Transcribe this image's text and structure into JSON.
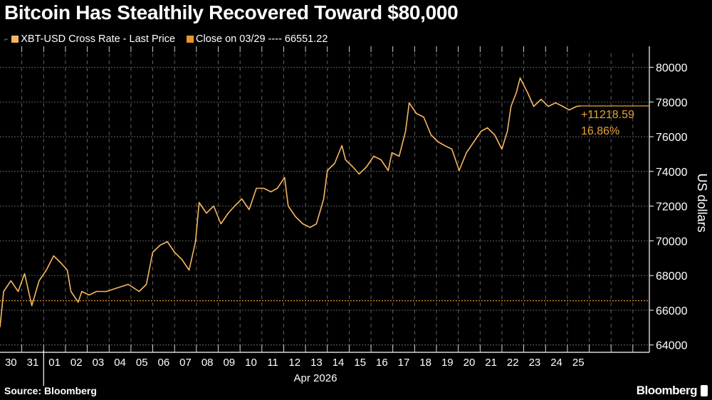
{
  "title": "Bitcoin Has Stealthily Recovered Toward $80,000",
  "legend": [
    {
      "label": "XBT-USD Cross Rate - Last Price",
      "color": "#f5b661"
    },
    {
      "label": "Close on 03/29 ---- 66551.22",
      "color": "#e8962e"
    }
  ],
  "source": "Source: Bloomberg",
  "logo": "Bloomberg",
  "chart_data": {
    "type": "line",
    "title": "Bitcoin Has Stealthily Recovered Toward $80,000",
    "ylabel": "US dollars",
    "xlabel": "Apr 2026",
    "ylim": [
      63700,
      80800
    ],
    "yticks": [
      64000,
      66000,
      68000,
      70000,
      72000,
      74000,
      76000,
      78000,
      80000
    ],
    "xtick_labels": [
      "30",
      "31",
      "01",
      "02",
      "03",
      "04",
      "05",
      "06",
      "07",
      "08",
      "09",
      "10",
      "11",
      "12",
      "13",
      "14",
      "15",
      "16",
      "17",
      "18",
      "19",
      "20",
      "21",
      "22",
      "23",
      "24",
      "25"
    ],
    "x_month_label": "Apr 2026",
    "grid": true,
    "reference_line": {
      "label": "Close on 03/29",
      "value": 66551.22
    },
    "annotation": {
      "change": "+11218.59",
      "percent": "16.86%"
    },
    "series": [
      {
        "name": "XBT-USD Cross Rate - Last Price",
        "points": [
          [
            "03-30 00",
            65035
          ],
          [
            "03-30 04",
            67085
          ],
          [
            "03-30 12",
            67700
          ],
          [
            "03-30 20",
            67085
          ],
          [
            "03-31 03",
            68110
          ],
          [
            "03-31 11",
            66265
          ],
          [
            "03-31 19",
            67700
          ],
          [
            "04-01 03",
            68315
          ],
          [
            "04-01 11",
            69135
          ],
          [
            "04-01 19",
            68725
          ],
          [
            "04-02 02",
            68315
          ],
          [
            "04-02 06",
            67085
          ],
          [
            "04-02 14",
            66470
          ],
          [
            "04-02 18",
            67085
          ],
          [
            "04-03 02",
            66880
          ],
          [
            "04-03 10",
            67085
          ],
          [
            "04-03 21",
            67085
          ],
          [
            "04-04 09",
            67290
          ],
          [
            "04-04 21",
            67495
          ],
          [
            "04-05 09",
            67085
          ],
          [
            "04-05 17",
            67495
          ],
          [
            "04-06 00",
            69340
          ],
          [
            "04-06 08",
            69750
          ],
          [
            "04-06 16",
            69955
          ],
          [
            "04-07 00",
            69340
          ],
          [
            "04-07 08",
            68930
          ],
          [
            "04-07 16",
            68315
          ],
          [
            "04-07 23",
            69955
          ],
          [
            "04-08 03",
            72210
          ],
          [
            "04-08 11",
            71595
          ],
          [
            "04-08 19",
            72005
          ],
          [
            "04-09 03",
            70980
          ],
          [
            "04-09 11",
            71595
          ],
          [
            "04-09 18",
            72005
          ],
          [
            "04-10 02",
            72415
          ],
          [
            "04-10 10",
            71800
          ],
          [
            "04-10 18",
            73030
          ],
          [
            "04-11 02",
            73030
          ],
          [
            "04-11 10",
            72825
          ],
          [
            "04-11 17",
            73030
          ],
          [
            "04-12 01",
            73645
          ],
          [
            "04-12 05",
            72005
          ],
          [
            "04-12 13",
            71390
          ],
          [
            "04-12 21",
            70980
          ],
          [
            "04-13 05",
            70775
          ],
          [
            "04-13 12",
            70980
          ],
          [
            "04-13 20",
            72415
          ],
          [
            "04-14 00",
            74055
          ],
          [
            "04-14 08",
            74465
          ],
          [
            "04-14 16",
            75490
          ],
          [
            "04-14 20",
            74670
          ],
          [
            "04-15 04",
            74260
          ],
          [
            "04-15 11",
            73850
          ],
          [
            "04-15 19",
            74260
          ],
          [
            "04-16 03",
            74875
          ],
          [
            "04-16 11",
            74670
          ],
          [
            "04-16 19",
            74055
          ],
          [
            "04-16 23",
            75080
          ],
          [
            "04-17 07",
            74875
          ],
          [
            "04-17 14",
            76310
          ],
          [
            "04-17 18",
            77950
          ],
          [
            "04-18 02",
            77335
          ],
          [
            "04-18 10",
            77130
          ],
          [
            "04-18 18",
            76105
          ],
          [
            "04-19 02",
            75695
          ],
          [
            "04-19 09",
            75490
          ],
          [
            "04-19 17",
            75285
          ],
          [
            "04-20 01",
            74055
          ],
          [
            "04-20 09",
            75080
          ],
          [
            "04-20 17",
            75695
          ],
          [
            "04-21 01",
            76310
          ],
          [
            "04-21 08",
            76515
          ],
          [
            "04-21 16",
            76105
          ],
          [
            "04-22 00",
            75285
          ],
          [
            "04-22 06",
            76310
          ],
          [
            "04-22 10",
            77745
          ],
          [
            "04-22 16",
            78565
          ],
          [
            "04-22 20",
            79385
          ],
          [
            "04-23 04",
            78565
          ],
          [
            "04-23 11",
            77745
          ],
          [
            "04-23 19",
            78155
          ],
          [
            "04-24 03",
            77745
          ],
          [
            "04-24 11",
            77950
          ],
          [
            "04-24 19",
            77745
          ],
          [
            "04-25 02",
            77540
          ],
          [
            "04-25 10",
            77745
          ],
          [
            "04-25 14",
            77770
          ]
        ]
      }
    ]
  }
}
